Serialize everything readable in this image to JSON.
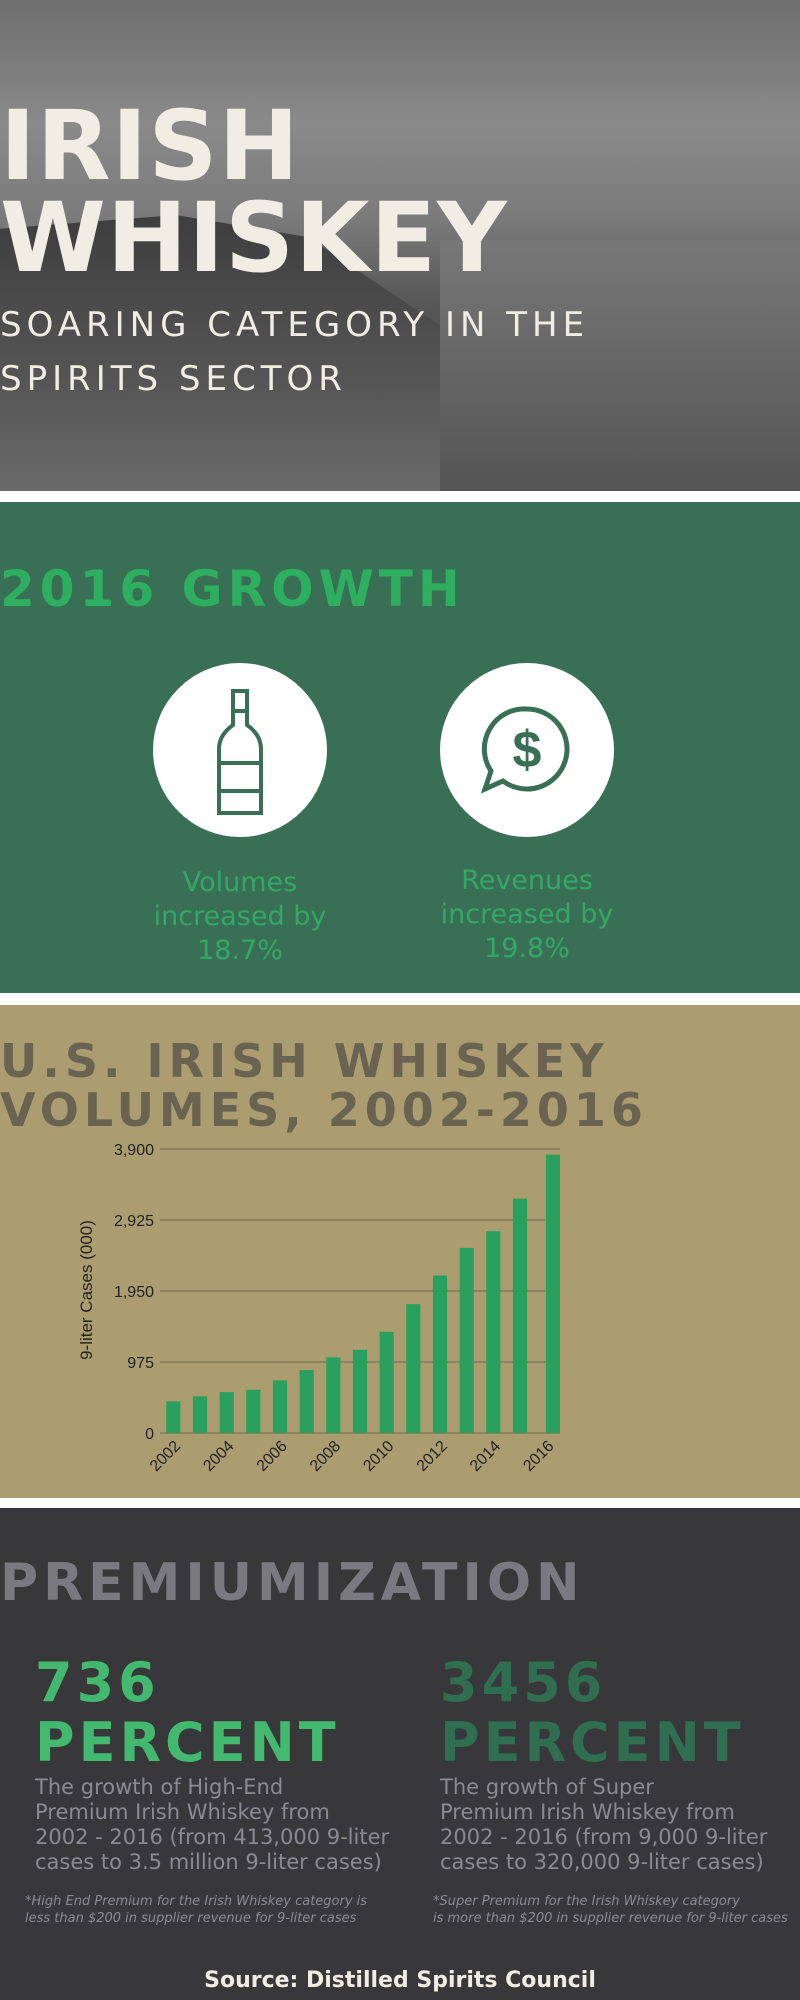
{
  "hero": {
    "title_line1": "IRISH",
    "title_line2": "WHISKEY",
    "subtitle_line1": "SOARING CATEGORY IN THE",
    "subtitle_line2": "SPIRITS SECTOR"
  },
  "growth": {
    "title": "2016 GROWTH",
    "volumes": {
      "icon": "bottle-icon",
      "lines": [
        "Volumes",
        "increased by",
        "18.7%"
      ]
    },
    "revenues": {
      "icon": "dollar-speech-bubble-icon",
      "lines": [
        "Revenues",
        "increased by",
        "19.8%"
      ]
    }
  },
  "volumes": {
    "title_line1": "U.S. IRISH WHISKEY",
    "title_line2": "VOLUMES, 2002-2016"
  },
  "chart_data": {
    "type": "bar",
    "title": "U.S. IRISH WHISKEY VOLUMES, 2002-2016",
    "xlabel": "",
    "ylabel": "9-liter Cases (000)",
    "ylim": [
      0,
      3900
    ],
    "yticks": [
      "0",
      "975",
      "1,950",
      "2,925",
      "3,900"
    ],
    "xticks": [
      "2002",
      "2004",
      "2006",
      "2008",
      "2010",
      "2012",
      "2014",
      "2016"
    ],
    "grid": true,
    "bar_color": "#2aa05e",
    "categories": [
      "2002",
      "2003",
      "2004",
      "2005",
      "2006",
      "2007",
      "2008",
      "2009",
      "2010",
      "2011",
      "2012",
      "2013",
      "2014",
      "2015",
      "2016"
    ],
    "values": [
      434,
      503,
      562,
      594,
      722,
      864,
      1038,
      1143,
      1390,
      1770,
      2163,
      2542,
      2771,
      3219,
      3822
    ]
  },
  "premium": {
    "title": "PREMIUMIZATION",
    "left": {
      "number": "736",
      "unit": "PERCENT",
      "color": "#43b86f",
      "desc": [
        "The growth of High-End",
        "Premium Irish Whiskey from",
        "2002 - 2016 (from 413,000 9-liter",
        "cases to 3.5 million 9-liter cases)"
      ],
      "note": [
        "*High End Premium for the Irish Whiskey category is",
        "less than $200 in supplier revenue for 9-liter cases"
      ]
    },
    "right": {
      "number": "3456",
      "unit": "PERCENT",
      "color": "#2f6e50",
      "desc": [
        "The growth of Super",
        "Premium Irish Whiskey from",
        "2002 - 2016 (from 9,000 9-liter",
        "cases to 320,000 9-liter cases)"
      ],
      "note": [
        "*Super Premium for the Irish Whiskey category",
        "is more than $200 in supplier revenue for 9-liter cases"
      ]
    },
    "source": "Source: Distilled Spirits Council"
  }
}
